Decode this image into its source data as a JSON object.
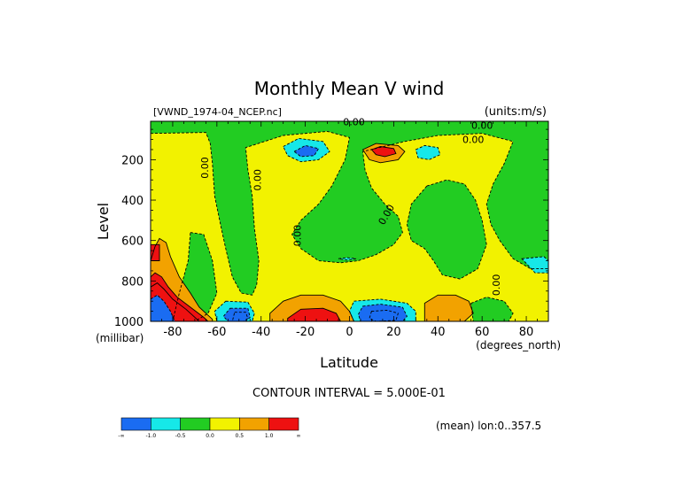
{
  "chart_data": {
    "type": "contour",
    "title": "Monthly Mean V wind",
    "dataset": "[VWND_1974-04_NCEP.nc]",
    "units": "(units:m/s)",
    "xlabel": "Latitude",
    "x_units": "(degrees_north)",
    "ylabel": "Level",
    "y_units": "(millibar)",
    "x_ticks": [
      -80,
      -60,
      -40,
      -20,
      0,
      20,
      40,
      60,
      80
    ],
    "y_ticks": [
      200,
      400,
      600,
      800,
      1000
    ],
    "xlim": [
      -90,
      90
    ],
    "ylim": [
      10,
      1000
    ],
    "y_reversed": true,
    "contour_interval_text": "CONTOUR INTERVAL = 5.000E-01",
    "contour_labels": [
      "0.00",
      "0.00",
      "0.00",
      "0.00",
      "0.00",
      "0.00",
      "0.00",
      "0.00"
    ],
    "mean_note": "(mean) lon:0..357.5",
    "colorbar": {
      "colors": [
        "#1a6cf2",
        "#16e8e8",
        "#22cc22",
        "#f2f200",
        "#f2a200",
        "#ee1111"
      ],
      "labels": [
        "-∞",
        "-1.0",
        "-0.5",
        "0.0",
        "0.5",
        "1.0",
        "∞"
      ]
    },
    "regions": [
      {
        "value": 0.25,
        "polygons": [
          [
            [
              -90,
              10
            ],
            [
              90,
              10
            ],
            [
              90,
              1000
            ],
            [
              -90,
              1000
            ]
          ]
        ]
      },
      {
        "value": -0.25,
        "polygons": [
          [
            [
              -90,
              70
            ],
            [
              -65,
              65
            ],
            [
              -63,
              120
            ],
            [
              -62,
              220
            ],
            [
              -61,
              380
            ],
            [
              -58,
              540
            ],
            [
              -56,
              640
            ],
            [
              -53,
              780
            ],
            [
              -49,
              860
            ],
            [
              -44,
              870
            ],
            [
              -42,
              820
            ],
            [
              -41,
              700
            ],
            [
              -43,
              540
            ],
            [
              -44,
              380
            ],
            [
              -46,
              250
            ],
            [
              -47,
              140
            ],
            [
              -30,
              80
            ],
            [
              -10,
              60
            ],
            [
              0,
              90
            ],
            [
              -2,
              200
            ],
            [
              -8,
              330
            ],
            [
              -14,
              420
            ],
            [
              -22,
              500
            ],
            [
              -26,
              570
            ],
            [
              -22,
              640
            ],
            [
              -14,
              700
            ],
            [
              -4,
              710
            ],
            [
              4,
              700
            ],
            [
              12,
              670
            ],
            [
              20,
              620
            ],
            [
              24,
              560
            ],
            [
              22,
              480
            ],
            [
              16,
              420
            ],
            [
              10,
              340
            ],
            [
              7,
              250
            ],
            [
              6,
              160
            ],
            [
              25,
              110
            ],
            [
              40,
              80
            ],
            [
              60,
              70
            ],
            [
              74,
              110
            ],
            [
              70,
              220
            ],
            [
              65,
              320
            ],
            [
              62,
              420
            ],
            [
              64,
              520
            ],
            [
              68,
              600
            ],
            [
              74,
              690
            ],
            [
              82,
              740
            ],
            [
              90,
              740
            ],
            [
              90,
              10
            ],
            [
              -90,
              10
            ]
          ],
          [
            [
              -72,
              560
            ],
            [
              -66,
              570
            ],
            [
              -62,
              700
            ],
            [
              -60,
              860
            ],
            [
              -64,
              960
            ],
            [
              -70,
              1000
            ],
            [
              -80,
              1000
            ],
            [
              -77,
              860
            ],
            [
              -73,
              700
            ]
          ],
          [
            [
              35,
              330
            ],
            [
              44,
              300
            ],
            [
              52,
              320
            ],
            [
              57,
              400
            ],
            [
              60,
              500
            ],
            [
              62,
              620
            ],
            [
              58,
              740
            ],
            [
              50,
              790
            ],
            [
              42,
              770
            ],
            [
              38,
              700
            ],
            [
              34,
              640
            ],
            [
              28,
              600
            ],
            [
              26,
              520
            ],
            [
              28,
              420
            ]
          ],
          [
            [
              55,
              910
            ],
            [
              62,
              880
            ],
            [
              70,
              900
            ],
            [
              74,
              960
            ],
            [
              72,
              1000
            ],
            [
              56,
              1000
            ]
          ]
        ]
      },
      {
        "value": -0.75,
        "polygons": [
          [
            [
              -30,
              135
            ],
            [
              -23,
              95
            ],
            [
              -12,
              110
            ],
            [
              -9,
              160
            ],
            [
              -14,
              200
            ],
            [
              -22,
              210
            ],
            [
              -28,
              180
            ]
          ],
          [
            [
              30,
              150
            ],
            [
              34,
              130
            ],
            [
              40,
              140
            ],
            [
              41,
              175
            ],
            [
              36,
              200
            ],
            [
              31,
              190
            ]
          ],
          [
            [
              78,
              690
            ],
            [
              88,
              680
            ],
            [
              90,
              700
            ],
            [
              90,
              760
            ],
            [
              84,
              760
            ]
          ],
          [
            [
              -56,
              900
            ],
            [
              -46,
              905
            ],
            [
              -43,
              960
            ],
            [
              -44,
              1000
            ],
            [
              -60,
              1000
            ],
            [
              -61,
              950
            ]
          ],
          [
            [
              2,
              900
            ],
            [
              14,
              890
            ],
            [
              26,
              910
            ],
            [
              30,
              950
            ],
            [
              30,
              1000
            ],
            [
              2,
              1000
            ],
            [
              0,
              950
            ]
          ],
          [
            [
              -5,
              690
            ],
            [
              -1,
              685
            ],
            [
              3,
              690
            ],
            [
              -1,
              697
            ]
          ]
        ]
      },
      {
        "value": -1.25,
        "polygons": [
          [
            [
              -25,
              160
            ],
            [
              -20,
              130
            ],
            [
              -14,
              145
            ],
            [
              -16,
              180
            ],
            [
              -22,
              185
            ]
          ],
          [
            [
              -54,
              935
            ],
            [
              -46,
              935
            ],
            [
              -45,
              980
            ],
            [
              -47,
              1000
            ],
            [
              -55,
              1000
            ],
            [
              -57,
              975
            ]
          ],
          [
            [
              6,
              925
            ],
            [
              14,
              915
            ],
            [
              24,
              930
            ],
            [
              26,
              975
            ],
            [
              24,
              1000
            ],
            [
              5,
              1000
            ],
            [
              4,
              965
            ]
          ]
        ]
      },
      {
        "value": -1.75,
        "polygons": [
          [
            [
              -52,
              955
            ],
            [
              -47,
              955
            ],
            [
              -46,
              985
            ],
            [
              -48,
              1000
            ],
            [
              -53,
              1000
            ]
          ],
          [
            [
              10,
              950
            ],
            [
              17,
              945
            ],
            [
              22,
              960
            ],
            [
              21,
              995
            ],
            [
              12,
              1000
            ],
            [
              9,
              985
            ]
          ]
        ]
      },
      {
        "value": 0.75,
        "polygons": [
          [
            [
              -90,
              700
            ],
            [
              -88,
              630
            ],
            [
              -86,
              590
            ],
            [
              -83,
              610
            ],
            [
              -81,
              680
            ],
            [
              -77,
              780
            ],
            [
              -72,
              860
            ],
            [
              -68,
              930
            ],
            [
              -62,
              990
            ],
            [
              -62,
              1000
            ],
            [
              -90,
              1000
            ]
          ],
          [
            [
              -36,
              960
            ],
            [
              -30,
              900
            ],
            [
              -22,
              870
            ],
            [
              -12,
              870
            ],
            [
              -4,
              900
            ],
            [
              0,
              950
            ],
            [
              2,
              1000
            ],
            [
              -36,
              1000
            ]
          ],
          [
            [
              6,
              150
            ],
            [
              12,
              120
            ],
            [
              22,
              130
            ],
            [
              25,
              160
            ],
            [
              22,
              200
            ],
            [
              14,
              215
            ],
            [
              9,
              200
            ]
          ],
          [
            [
              34,
              910
            ],
            [
              40,
              870
            ],
            [
              48,
              870
            ],
            [
              54,
              900
            ],
            [
              56,
              960
            ],
            [
              52,
              1000
            ],
            [
              34,
              1000
            ]
          ]
        ]
      },
      {
        "value": 1.25,
        "polygons": [
          [
            [
              -90,
              780
            ],
            [
              -88,
              760
            ],
            [
              -85,
              780
            ],
            [
              -82,
              830
            ],
            [
              -78,
              880
            ],
            [
              -72,
              930
            ],
            [
              -66,
              980
            ],
            [
              -64,
              1000
            ],
            [
              -90,
              1000
            ]
          ],
          [
            [
              -28,
              985
            ],
            [
              -22,
              940
            ],
            [
              -12,
              935
            ],
            [
              -6,
              960
            ],
            [
              -4,
              1000
            ],
            [
              -28,
              1000
            ]
          ],
          [
            [
              10,
              150
            ],
            [
              14,
              135
            ],
            [
              20,
              145
            ],
            [
              21,
              170
            ],
            [
              16,
              185
            ],
            [
              12,
              175
            ]
          ]
        ]
      },
      {
        "value": 1.75,
        "polygons": [
          [
            [
              -90,
              830
            ],
            [
              -87,
              810
            ],
            [
              -84,
              840
            ],
            [
              -80,
              890
            ],
            [
              -74,
              940
            ],
            [
              -69,
              990
            ],
            [
              -68,
              1000
            ],
            [
              -90,
              1000
            ]
          ]
        ]
      },
      {
        "value": -2.25,
        "polygons": [
          [
            [
              -90,
              890
            ],
            [
              -87,
              870
            ],
            [
              -84,
              900
            ],
            [
              -81,
              950
            ],
            [
              -79,
              1000
            ],
            [
              -90,
              1000
            ]
          ]
        ]
      },
      {
        "value": 2.25,
        "polygons": [
          [
            [
              -90,
              620
            ],
            [
              -86,
              620
            ],
            [
              -86,
              700
            ],
            [
              -90,
              700
            ]
          ]
        ]
      }
    ]
  }
}
